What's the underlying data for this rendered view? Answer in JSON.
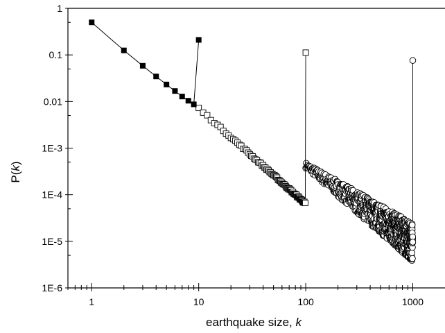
{
  "chart_data": {
    "type": "scatter",
    "title": "",
    "xlabel": "earthquake size, ",
    "xlabel_var": "k",
    "ylabel_prefix": "P(",
    "ylabel_var": "k",
    "ylabel_suffix": ")",
    "x_scale": "log",
    "y_scale": "log",
    "xlim": [
      0.6,
      2000
    ],
    "ylim": [
      1e-06,
      1
    ],
    "grid": false,
    "x_ticks": [
      {
        "value": 1,
        "label": "1"
      },
      {
        "value": 10,
        "label": "10"
      },
      {
        "value": 100,
        "label": "100"
      },
      {
        "value": 1000,
        "label": "1000"
      }
    ],
    "y_ticks": [
      {
        "value": 1,
        "label": "1"
      },
      {
        "value": 0.1,
        "label": "0.1"
      },
      {
        "value": 0.01,
        "label": "0.01"
      },
      {
        "value": 0.001,
        "label": "1E-3"
      },
      {
        "value": 0.0001,
        "label": "1E-4"
      },
      {
        "value": 1e-05,
        "label": "1E-5"
      },
      {
        "value": 1e-06,
        "label": "1E-6"
      }
    ],
    "series": [
      {
        "marker": "filled-square",
        "color": "#000000",
        "x": [
          1,
          2,
          3,
          4,
          5,
          6,
          7,
          8,
          9,
          10
        ],
        "y": [
          0.5,
          0.125,
          0.0585,
          0.0345,
          0.0232,
          0.0168,
          0.0128,
          0.0104,
          0.0087,
          0.21
        ]
      },
      {
        "marker": "open-square",
        "color": "#000000",
        "x_range": [
          10,
          100
        ],
        "cutoff_y": 0.112,
        "power_law": {
          "c": 0.8,
          "exponent": -2.05
        }
      },
      {
        "marker": "open-circle",
        "color": "#000000",
        "x_range": [
          100,
          1000
        ],
        "cutoff_y": 0.076,
        "power_law": {
          "c": 0.85,
          "exponent": -1.65
        }
      }
    ]
  }
}
